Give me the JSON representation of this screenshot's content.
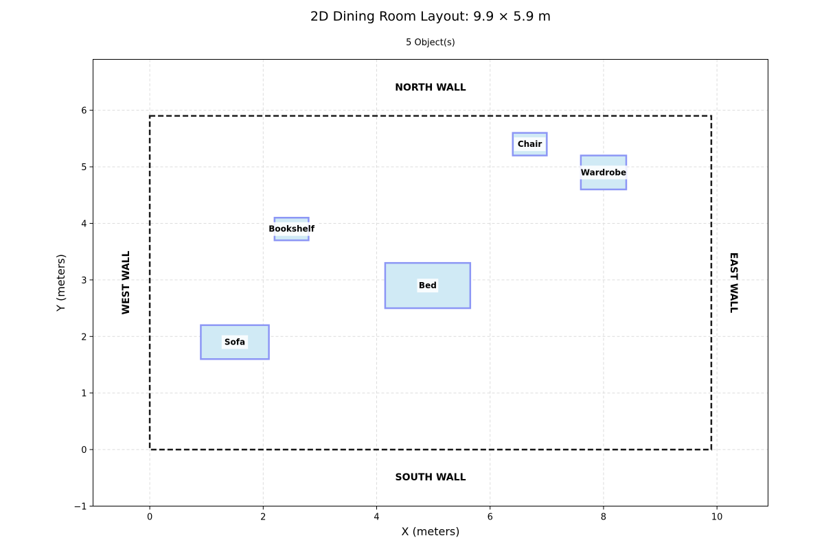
{
  "chart_data": {
    "type": "floor-plan",
    "title": "2D Dining Room Layout: 9.9 × 5.9 m",
    "subtitle": "5 Object(s)",
    "xlabel": "X (meters)",
    "ylabel": "Y (meters)",
    "xlim": [
      -1,
      10.9
    ],
    "ylim": [
      -1,
      6.9
    ],
    "xticks": [
      0,
      2,
      4,
      6,
      8,
      10
    ],
    "yticks": [
      -1,
      0,
      1,
      2,
      3,
      4,
      5,
      6
    ],
    "xtick_labels": [
      "0",
      "2",
      "4",
      "6",
      "8",
      "10"
    ],
    "ytick_labels": [
      "−1",
      "0",
      "1",
      "2",
      "3",
      "4",
      "5",
      "6"
    ],
    "grid": true,
    "room": {
      "width": 9.9,
      "depth": 5.9
    },
    "walls": {
      "north": "NORTH WALL",
      "south": "SOUTH WALL",
      "west": "WEST WALL",
      "east": "EAST WALL"
    },
    "objects": [
      {
        "name": "Sofa",
        "x": 0.9,
        "y": 1.6,
        "w": 1.2,
        "h": 0.6
      },
      {
        "name": "Bookshelf",
        "x": 2.2,
        "y": 3.7,
        "w": 0.6,
        "h": 0.4
      },
      {
        "name": "Bed",
        "x": 4.15,
        "y": 2.5,
        "w": 1.5,
        "h": 0.8
      },
      {
        "name": "Chair",
        "x": 6.4,
        "y": 5.2,
        "w": 0.6,
        "h": 0.4
      },
      {
        "name": "Wardrobe",
        "x": 7.6,
        "y": 4.6,
        "w": 0.8,
        "h": 0.6
      }
    ],
    "colors": {
      "object_fill": "#d0eaf5",
      "object_stroke": "#8c96f5",
      "room_outline": "#1a1a1a",
      "grid": "#dcdcdc"
    }
  }
}
